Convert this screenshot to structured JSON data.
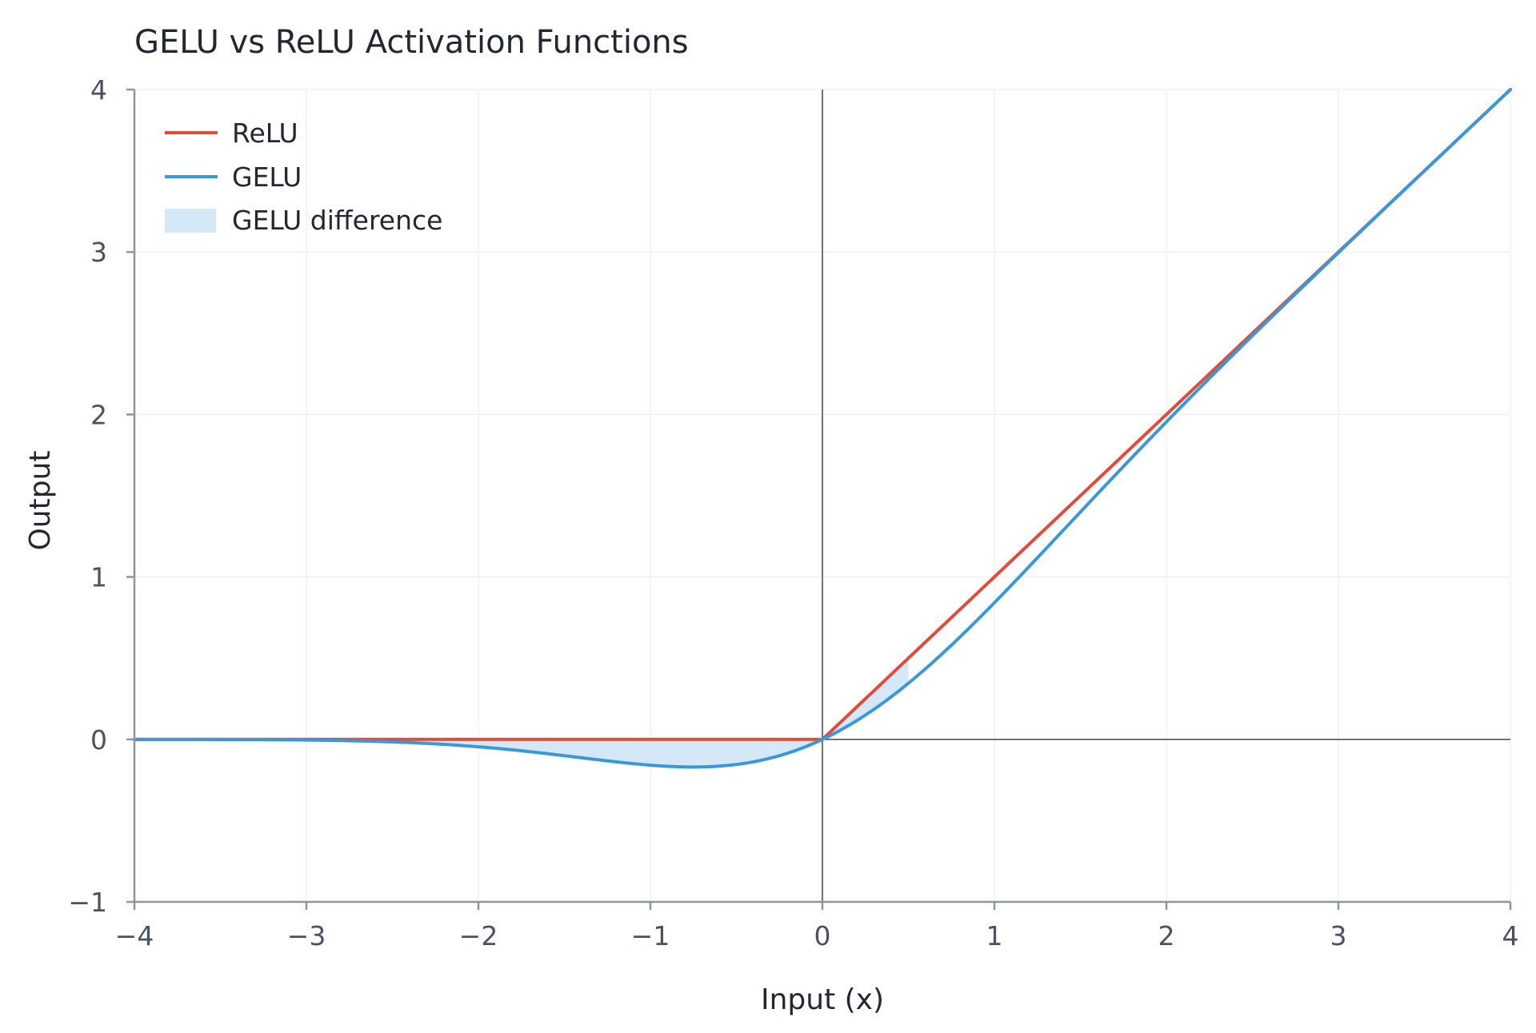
{
  "chart_data": {
    "type": "line",
    "title": "GELU vs ReLU Activation Functions",
    "xlabel": "Input (x)",
    "ylabel": "Output",
    "xlim": [
      -4,
      4
    ],
    "ylim": [
      -1,
      4
    ],
    "xticks": [
      -4,
      -3,
      -2,
      -1,
      0,
      1,
      2,
      3,
      4
    ],
    "yticks": [
      -1,
      0,
      1,
      2,
      3,
      4
    ],
    "xtick_labels": [
      "−4",
      "−3",
      "−2",
      "−1",
      "0",
      "1",
      "2",
      "3",
      "4"
    ],
    "ytick_labels": [
      "−1",
      "0",
      "1",
      "2",
      "3",
      "4"
    ],
    "grid": true,
    "legend_position": "top-left",
    "x": [
      -4,
      -3.5,
      -3,
      -2.5,
      -2,
      -1.75,
      -1.5,
      -1.25,
      -1,
      -0.75,
      -0.5,
      -0.25,
      0,
      0.25,
      0.5,
      0.75,
      1,
      1.25,
      1.5,
      1.75,
      2,
      2.5,
      3,
      3.5,
      4
    ],
    "series": [
      {
        "name": "ReLU",
        "color": "#e04b3a",
        "values": [
          0,
          0,
          0,
          0,
          0,
          0,
          0,
          0,
          0,
          0,
          0,
          0,
          0,
          0.25,
          0.5,
          0.75,
          1,
          1.25,
          1.5,
          1.75,
          2,
          2.5,
          3,
          3.5,
          4
        ]
      },
      {
        "name": "GELU",
        "color": "#3a98d8",
        "values": [
          -0.0001,
          -0.0008,
          -0.004,
          -0.0155,
          -0.0455,
          -0.0702,
          -0.1002,
          -0.1321,
          -0.1587,
          -0.17,
          -0.1543,
          -0.1003,
          0,
          0.1497,
          0.3457,
          0.58,
          0.8413,
          1.1179,
          1.3998,
          1.6798,
          1.9545,
          2.4845,
          2.996,
          3.4992,
          3.9999
        ]
      }
    ],
    "fill": {
      "name": "GELU difference",
      "color": "#d4e8f7",
      "between": [
        "ReLU",
        "GELU"
      ],
      "x_range": [
        -4,
        0.5
      ]
    }
  }
}
